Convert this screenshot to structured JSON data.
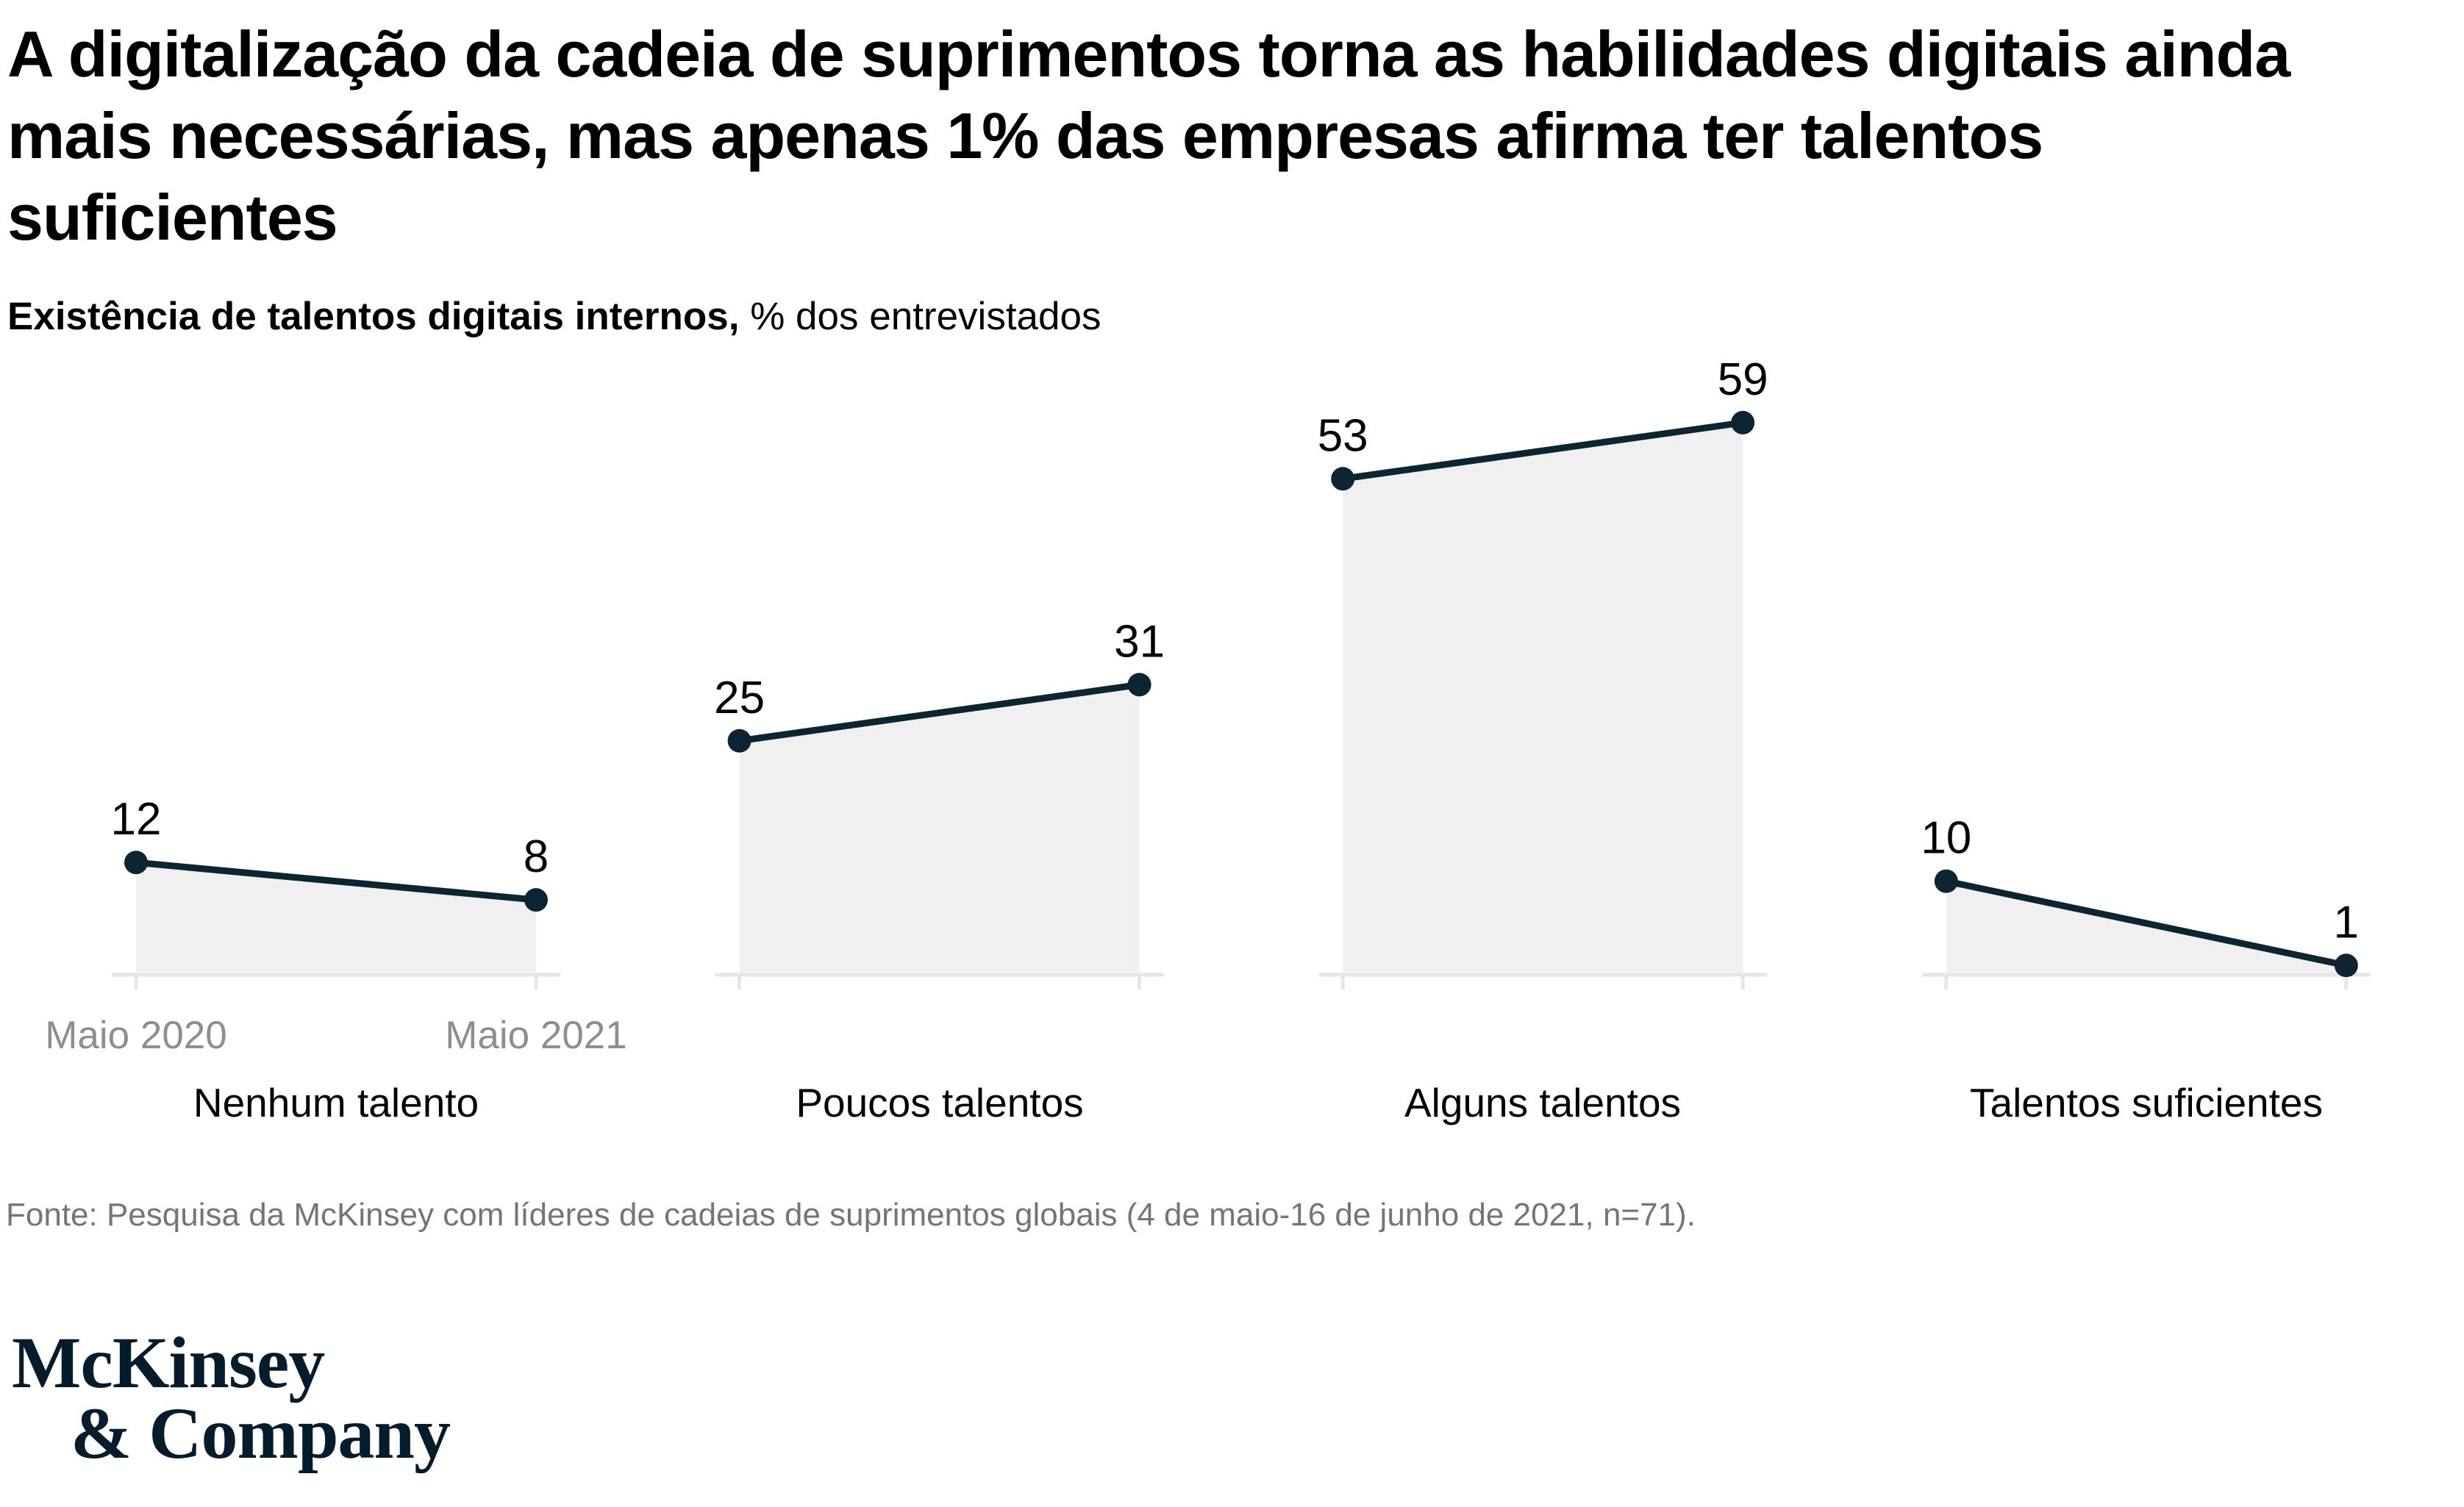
{
  "title": {
    "lines": [
      "A digitalização da cadeia de suprimentos torna as habilidades digitais ainda",
      "mais necessárias, mas apenas 1% das empresas afirma ter talentos",
      "suficientes"
    ]
  },
  "subtitle": {
    "bold": "Existência de talentos digitais internos,",
    "rest": " % dos entrevistados"
  },
  "chart_data": {
    "type": "area",
    "x": [
      "Maio 2020",
      "Maio 2021"
    ],
    "categories": [
      "Nenhum talento",
      "Poucos talentos",
      "Alguns talentos",
      "Talentos suficientes"
    ],
    "series": [
      {
        "name": "Nenhum talento",
        "values": [
          12,
          8
        ]
      },
      {
        "name": "Poucos talentos",
        "values": [
          25,
          31
        ]
      },
      {
        "name": "Alguns talentos",
        "values": [
          53,
          59
        ]
      },
      {
        "name": "Talentos suficientes",
        "values": [
          10,
          1
        ]
      }
    ],
    "title": "Existência de talentos digitais internos, % dos entrevistados",
    "unit": "% dos entrevistados",
    "ylim": [
      0,
      67
    ],
    "grid": false,
    "legend": "none",
    "value_labels_shown": [
      12,
      8,
      25,
      31,
      53,
      59,
      10,
      1
    ]
  },
  "footer": {
    "source": "Fonte: Pesquisa da McKinsey com líderes de cadeias de suprimentos globais (4 de maio-16 de junho de 2021, n=71)."
  },
  "logo": {
    "line1": "McKinsey",
    "line2": "& Company"
  },
  "colors": {
    "text": "#000000",
    "navy": "#0d2533",
    "logo_navy": "#051c2c",
    "fill": "#f0f0f0",
    "axis": "#e6e6e6",
    "tick_label": "#8e8e8e",
    "source": "#757575",
    "background": "#ffffff"
  }
}
